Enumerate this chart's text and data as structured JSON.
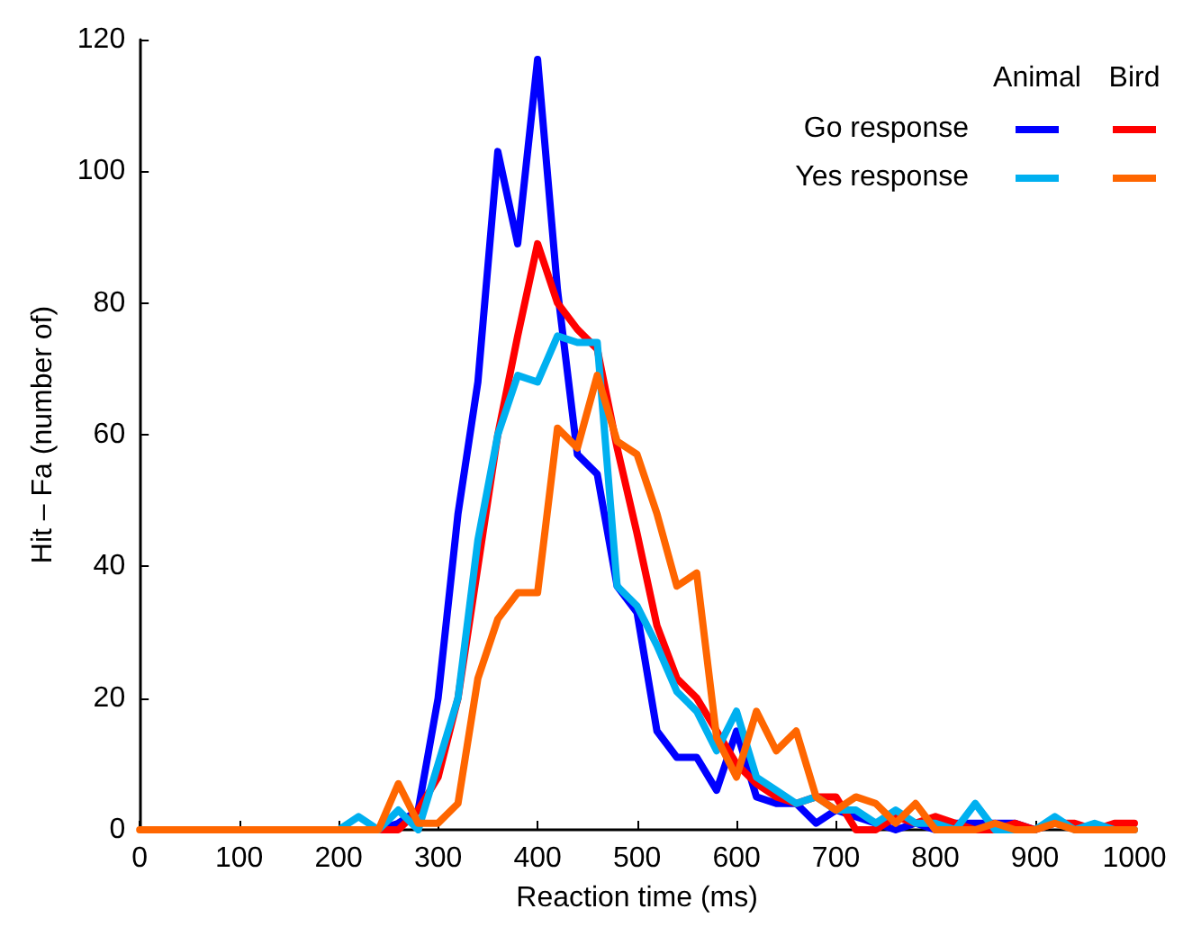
{
  "chart_data": {
    "type": "line",
    "xlabel": "Reaction time (ms)",
    "ylabel": "Hit – Fa (number of)",
    "x": [
      0,
      20,
      40,
      60,
      80,
      100,
      120,
      140,
      160,
      180,
      200,
      220,
      240,
      260,
      280,
      300,
      320,
      340,
      360,
      380,
      400,
      420,
      440,
      460,
      480,
      500,
      520,
      540,
      560,
      580,
      600,
      620,
      640,
      660,
      680,
      700,
      720,
      740,
      760,
      780,
      800,
      820,
      840,
      860,
      880,
      900,
      920,
      940,
      960,
      980,
      1000
    ],
    "series": [
      {
        "color": "#0000ff",
        "values": [
          null,
          null,
          null,
          null,
          null,
          null,
          null,
          null,
          null,
          null,
          null,
          0,
          0,
          1,
          3,
          20,
          48,
          68,
          103,
          89,
          117,
          82,
          57,
          54,
          37,
          33,
          15,
          11,
          11,
          6,
          15,
          5,
          4,
          4,
          1,
          3,
          2,
          1,
          0,
          1,
          0,
          1,
          1,
          1,
          1,
          0,
          null,
          null,
          null,
          null,
          null
        ]
      },
      {
        "color": "#ff0000",
        "values": [
          null,
          null,
          null,
          null,
          null,
          null,
          null,
          null,
          null,
          null,
          null,
          0,
          0,
          0,
          3,
          8,
          20,
          40,
          60,
          75,
          89,
          80,
          76,
          73,
          58,
          45,
          31,
          23,
          20,
          15,
          10,
          7,
          5,
          4,
          5,
          5,
          0,
          0,
          2,
          1,
          2,
          1,
          0,
          0,
          1,
          0,
          1,
          1,
          0,
          1,
          1
        ]
      },
      {
        "color": "#00b0f0",
        "values": [
          null,
          null,
          null,
          null,
          null,
          null,
          null,
          null,
          null,
          null,
          0,
          2,
          0,
          3,
          0,
          10,
          20,
          44,
          60,
          69,
          68,
          75,
          74,
          74,
          37,
          34,
          28,
          21,
          18,
          12,
          18,
          8,
          6,
          4,
          5,
          3,
          3,
          1,
          3,
          1,
          1,
          0,
          4,
          0,
          0,
          0,
          2,
          0,
          1,
          0,
          0
        ]
      },
      {
        "color": "#ff6600",
        "values": [
          0,
          0,
          0,
          0,
          0,
          0,
          0,
          0,
          0,
          0,
          0,
          0,
          0,
          7,
          1,
          1,
          4,
          23,
          32,
          36,
          36,
          61,
          58,
          69,
          59,
          57,
          48,
          37,
          39,
          14,
          8,
          18,
          12,
          15,
          5,
          3,
          5,
          4,
          1,
          4,
          0,
          0,
          0,
          1,
          0,
          0,
          1,
          0,
          0,
          0,
          0
        ]
      }
    ],
    "xlim": [
      0,
      1000
    ],
    "xticks": [
      0,
      100,
      200,
      300,
      400,
      500,
      600,
      700,
      800,
      900,
      1000
    ],
    "ylim": [
      0,
      120
    ],
    "yticks": [
      0,
      20,
      40,
      60,
      80,
      100,
      120
    ],
    "annotations": [
      "Go response",
      "Yes response",
      "Animal",
      "Bird"
    ],
    "grid": false,
    "marker": "none",
    "line_style": "solid"
  }
}
